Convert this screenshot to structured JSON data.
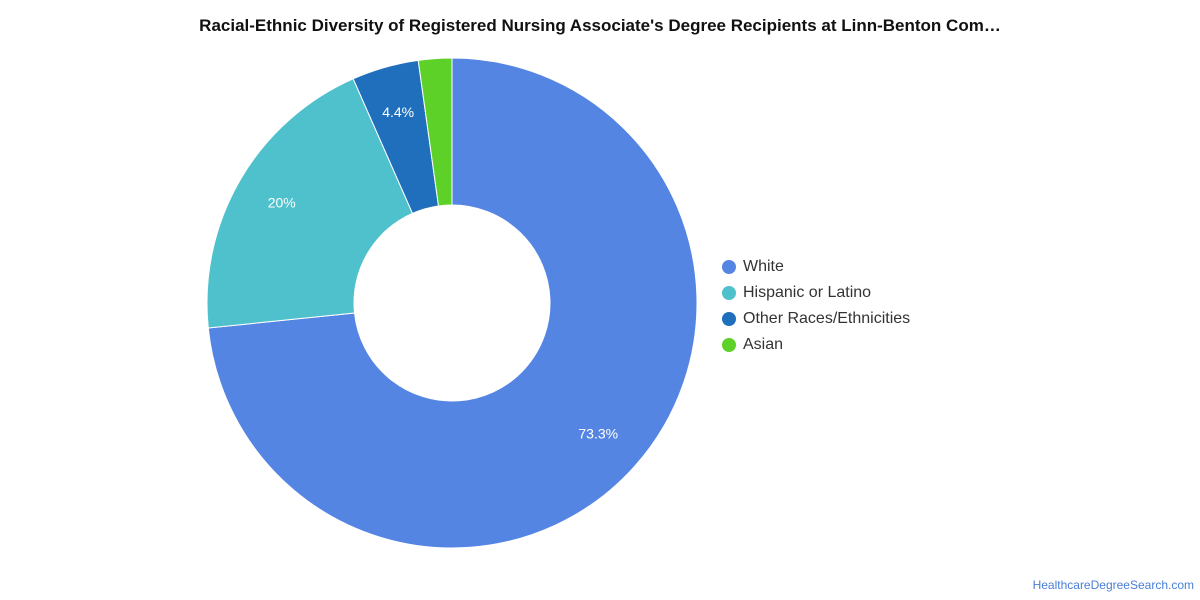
{
  "chart_data": {
    "type": "pie",
    "title": "Racial-Ethnic Diversity of Registered Nursing Associate's Degree Recipients at Linn-Benton Com…",
    "categories": [
      "White",
      "Hispanic or Latino",
      "Other Races/Ethnicities",
      "Asian"
    ],
    "values": [
      73.3,
      20,
      4.4,
      2.2
    ],
    "data_labels": [
      "73.3%",
      "20%",
      "4.4%",
      ""
    ],
    "colors": [
      "#5585e3",
      "#4fc1cd",
      "#1f6fbd",
      "#5dd127"
    ],
    "donut": true,
    "legend_position": "right"
  },
  "source": "HealthcareDegreeSearch.com"
}
